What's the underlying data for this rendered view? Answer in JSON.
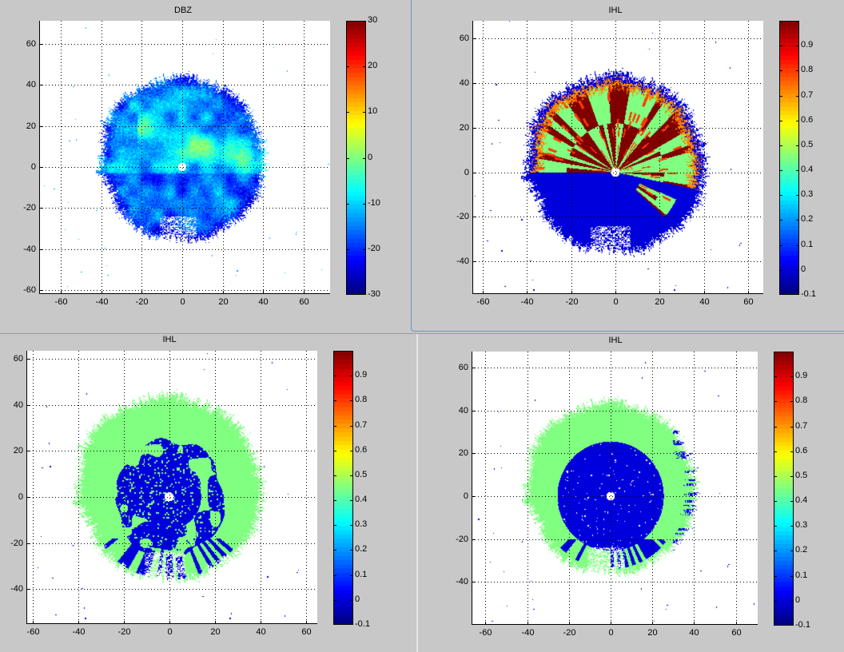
{
  "chart_data": [
    {
      "type": "heatmap",
      "title": "DBZ",
      "xlim": [
        -70.7,
        73
      ],
      "ylim": [
        -62,
        71.3
      ],
      "xticks": [
        -60,
        -40,
        -20,
        0,
        20,
        40,
        60
      ],
      "yticks": [
        -60,
        -40,
        -20,
        0,
        20,
        40,
        60
      ],
      "grid": true,
      "colormap": "jet",
      "clim": [
        -30,
        30
      ],
      "colorbar_ticks": [
        -30,
        -20,
        -10,
        0,
        10,
        20,
        30
      ]
    },
    {
      "type": "heatmap",
      "title": "IHL",
      "xlim": [
        -64.6,
        66.8
      ],
      "ylim": [
        -54.6,
        67.9
      ],
      "xticks": [
        -60,
        -40,
        -20,
        0,
        20,
        40,
        60
      ],
      "yticks": [
        -40,
        -20,
        0,
        20,
        40,
        60
      ],
      "grid": true,
      "colormap": "jet",
      "clim": [
        -0.1,
        1.0
      ],
      "colorbar_ticks": [
        -0.1,
        0,
        0.1,
        0.2,
        0.3,
        0.4,
        0.5,
        0.6,
        0.7,
        0.8,
        0.9
      ]
    },
    {
      "type": "heatmap",
      "title": "IHL",
      "xlim": [
        -62.8,
        65
      ],
      "ylim": [
        -55.2,
        63.5
      ],
      "xticks": [
        -60,
        -40,
        -20,
        0,
        20,
        40,
        60
      ],
      "yticks": [
        -40,
        -20,
        0,
        20,
        40,
        60
      ],
      "grid": true,
      "colormap": "jet",
      "clim": [
        -0.1,
        1.0
      ],
      "colorbar_ticks": [
        -0.1,
        0,
        0.1,
        0.2,
        0.3,
        0.4,
        0.5,
        0.6,
        0.7,
        0.8,
        0.9
      ]
    },
    {
      "type": "heatmap",
      "title": "IHL",
      "xlim": [
        -66.7,
        70.5
      ],
      "ylim": [
        -60,
        67.5
      ],
      "xticks": [
        -60,
        -40,
        -20,
        0,
        20,
        40,
        60
      ],
      "yticks": [
        -40,
        -20,
        0,
        20,
        40,
        60
      ],
      "grid": true,
      "colormap": "jet",
      "clim": [
        -0.1,
        1.0
      ],
      "colorbar_ticks": [
        -0.1,
        0,
        0.1,
        0.2,
        0.3,
        0.4,
        0.5,
        0.6,
        0.7,
        0.8,
        0.9
      ]
    }
  ]
}
